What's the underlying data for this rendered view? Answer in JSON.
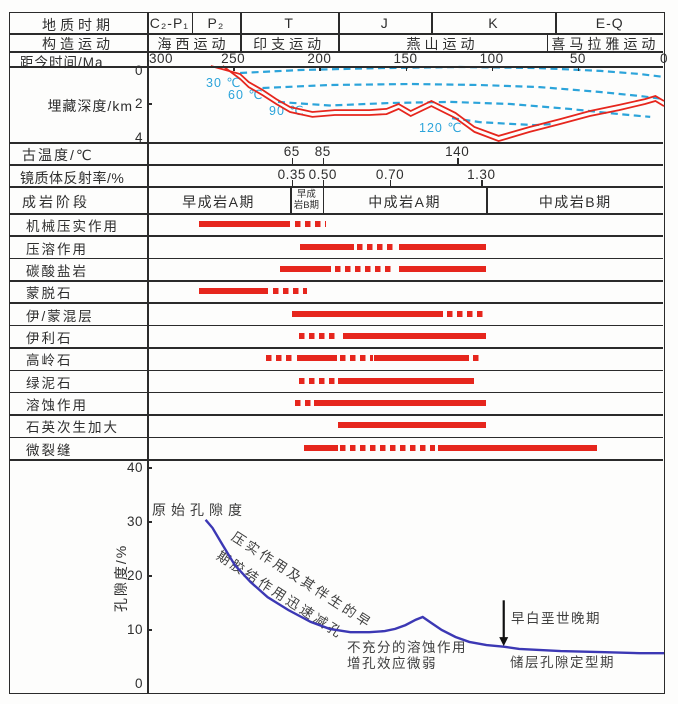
{
  "figure": {
    "bg": "#fdfdfc",
    "line_color": "#2b2b2b",
    "red": "#e6261d",
    "cyan": "#2ca4da",
    "blue": "#3c38b4",
    "text": "#2e2e2e"
  },
  "left_labels": {
    "geologic_period": "地质时期",
    "tectonic_movement": "构造运动",
    "time_ma": "距今时间/Ma",
    "burial_depth": "埋藏深度/km",
    "paleo_temp": "古温度/℃",
    "vitrinite": "镜质体反射率/%",
    "diagenetic_stage": "成岩阶段",
    "porosity_axis": "孔隙度/%"
  },
  "annotations": {
    "original_porosity": "原始孔隙度",
    "compaction_note_line1": "压实作用及其伴生的早",
    "compaction_note_line2": "期胶结作用迅速减孔",
    "dissolution_note": "不充分的溶蚀作用\n增孔效应微弱",
    "early_cretaceous_late": "早白垩世晚期",
    "porosity_finalized": "储层孔隙定型期"
  },
  "chart_data": {
    "type": "composite (geologic time table + burial-history line chart + diagenesis event bars + porosity-evolution line chart)",
    "time_axis": {
      "label": "距今时间/Ma",
      "min": 0,
      "max": 300,
      "ticks": [
        300,
        250,
        200,
        150,
        100,
        50,
        0
      ]
    },
    "periods": [
      {
        "label": "C₂-P₁",
        "from_ma": 300,
        "to_ma": 274
      },
      {
        "label": "P₂",
        "from_ma": 274,
        "to_ma": 246
      },
      {
        "label": "T",
        "from_ma": 246,
        "to_ma": 189
      },
      {
        "label": "J",
        "from_ma": 189,
        "to_ma": 135
      },
      {
        "label": "K",
        "from_ma": 135,
        "to_ma": 63
      },
      {
        "label": "E-Q",
        "from_ma": 63,
        "to_ma": 0
      }
    ],
    "tectonic": [
      {
        "label": "海西运动",
        "from_ma": 300,
        "to_ma": 246
      },
      {
        "label": "印支运动",
        "from_ma": 246,
        "to_ma": 189
      },
      {
        "label": "燕山运动",
        "from_ma": 189,
        "to_ma": 68
      },
      {
        "label": "喜马拉雅运动",
        "from_ma": 68,
        "to_ma": 0
      }
    ],
    "burial": {
      "ylabel": "埋藏深度/km",
      "depth_ticks": [
        0,
        2,
        4
      ],
      "top_line_ma_km": [
        [
          263,
          0
        ],
        [
          246,
          0.42
        ],
        [
          241,
          0.84
        ],
        [
          233,
          1.26
        ],
        [
          225,
          1.74
        ],
        [
          217,
          2.16
        ],
        [
          204,
          2.42
        ],
        [
          191,
          2.32
        ],
        [
          171,
          2.32
        ],
        [
          161,
          2.26
        ],
        [
          154,
          2.0
        ],
        [
          147,
          2.37
        ],
        [
          135,
          1.84
        ],
        [
          121,
          2.47
        ],
        [
          110,
          3.21
        ],
        [
          96,
          3.68
        ],
        [
          78,
          3.21
        ],
        [
          60,
          2.79
        ],
        [
          43,
          2.37
        ],
        [
          26,
          2.05
        ],
        [
          11,
          1.74
        ],
        [
          5,
          1.58
        ],
        [
          0,
          1.84
        ]
      ],
      "bottom_line_ma_km": [
        [
          256,
          0
        ],
        [
          246,
          0.68
        ],
        [
          241,
          1.11
        ],
        [
          233,
          1.53
        ],
        [
          225,
          2.0
        ],
        [
          217,
          2.42
        ],
        [
          204,
          2.68
        ],
        [
          191,
          2.58
        ],
        [
          171,
          2.58
        ],
        [
          161,
          2.53
        ],
        [
          154,
          2.26
        ],
        [
          147,
          2.63
        ],
        [
          135,
          2.11
        ],
        [
          121,
          2.74
        ],
        [
          110,
          3.47
        ],
        [
          96,
          3.95
        ],
        [
          78,
          3.47
        ],
        [
          60,
          3.05
        ],
        [
          43,
          2.63
        ],
        [
          26,
          2.32
        ],
        [
          11,
          2.0
        ],
        [
          5,
          1.84
        ],
        [
          0,
          2.11
        ]
      ],
      "isotherms": [
        {
          "label": "30 ℃",
          "label_ma": 266,
          "label_km": 0.5,
          "points": [
            [
              246,
              0.37
            ],
            [
              211,
              0.21
            ],
            [
              165,
              0.11
            ],
            [
              118,
              0.05
            ],
            [
              72,
              0.11
            ],
            [
              37,
              0.26
            ],
            [
              14,
              0.42
            ],
            [
              0,
              0.58
            ]
          ]
        },
        {
          "label": "60 ℃",
          "label_ma": 253,
          "label_km": 1.16,
          "points": [
            [
              233,
              1.16
            ],
            [
              194,
              1.0
            ],
            [
              147,
              0.95
            ],
            [
              107,
              1.0
            ],
            [
              72,
              1.11
            ],
            [
              37,
              1.37
            ],
            [
              14,
              1.58
            ],
            [
              0,
              1.74
            ]
          ]
        },
        {
          "label": "90 ℃",
          "label_ma": 229,
          "label_km": 2.0,
          "points": [
            [
              224,
              1.89
            ],
            [
              194,
              2.08
            ],
            [
              159,
              1.95
            ],
            [
              124,
              1.89
            ],
            [
              89,
              2.0
            ],
            [
              55,
              2.26
            ],
            [
              26,
              2.53
            ],
            [
              8,
              2.68
            ]
          ]
        },
        {
          "label": "120 ℃",
          "label_ma": 142,
          "label_km": 2.95,
          "points": [
            [
              123,
              2.74
            ],
            [
              107,
              2.95
            ],
            [
              89,
              3.05
            ],
            [
              75,
              3.11
            ],
            [
              64,
              3.05
            ]
          ]
        }
      ]
    },
    "paleo_temp_marks": [
      {
        "value": "65",
        "ma": 216
      },
      {
        "value": "85",
        "ma": 198
      },
      {
        "value": "140",
        "ma": 120
      }
    ],
    "vitrinite_marks": [
      {
        "value": "0.35",
        "ma": 216
      },
      {
        "value": "0.50",
        "ma": 198
      },
      {
        "value": "0.70",
        "ma": 159
      },
      {
        "value": "1.30",
        "ma": 106
      }
    ],
    "stages": [
      {
        "label": "早成岩A期",
        "from_ma": 300,
        "to_ma": 217,
        "small": false
      },
      {
        "label": "早成\n岩B期",
        "from_ma": 217,
        "to_ma": 198,
        "small": true
      },
      {
        "label": "中成岩A期",
        "from_ma": 198,
        "to_ma": 103,
        "small": false
      },
      {
        "label": "中成岩B期",
        "from_ma": 103,
        "to_ma": 0,
        "small": false
      }
    ],
    "processes": [
      {
        "label": "机械压实作用",
        "segments": [
          {
            "style": "solid",
            "from_ma": 270,
            "to_ma": 217
          },
          {
            "style": "dashed",
            "from_ma": 214,
            "to_ma": 196
          }
        ]
      },
      {
        "label": "压溶作用",
        "segments": [
          {
            "style": "solid",
            "from_ma": 211,
            "to_ma": 180
          },
          {
            "style": "dashed",
            "from_ma": 178,
            "to_ma": 156
          },
          {
            "style": "solid",
            "from_ma": 154,
            "to_ma": 103
          }
        ]
      },
      {
        "label": "碳酸盐岩",
        "segments": [
          {
            "style": "solid",
            "from_ma": 223,
            "to_ma": 193
          },
          {
            "style": "dashed",
            "from_ma": 191,
            "to_ma": 157
          },
          {
            "style": "solid",
            "from_ma": 154,
            "to_ma": 103
          }
        ]
      },
      {
        "label": "蒙脱石",
        "segments": [
          {
            "style": "solid",
            "from_ma": 270,
            "to_ma": 230
          },
          {
            "style": "dashed",
            "from_ma": 227,
            "to_ma": 207
          }
        ]
      },
      {
        "label": "伊/蒙混层",
        "segments": [
          {
            "style": "solid",
            "from_ma": 216,
            "to_ma": 128
          },
          {
            "style": "dashed",
            "from_ma": 126,
            "to_ma": 104
          }
        ]
      },
      {
        "label": "伊利石",
        "segments": [
          {
            "style": "dashed",
            "from_ma": 212,
            "to_ma": 189
          },
          {
            "style": "solid",
            "from_ma": 186,
            "to_ma": 103
          }
        ]
      },
      {
        "label": "高岭石",
        "segments": [
          {
            "style": "dashed",
            "from_ma": 231,
            "to_ma": 216
          },
          {
            "style": "solid",
            "from_ma": 213,
            "to_ma": 190
          },
          {
            "style": "dashed",
            "from_ma": 188,
            "to_ma": 169
          },
          {
            "style": "solid",
            "from_ma": 168,
            "to_ma": 113
          },
          {
            "style": "dashed",
            "from_ma": 111,
            "to_ma": 106
          }
        ]
      },
      {
        "label": "绿泥石",
        "segments": [
          {
            "style": "dashed",
            "from_ma": 212,
            "to_ma": 190
          },
          {
            "style": "solid",
            "from_ma": 189,
            "to_ma": 110
          }
        ]
      },
      {
        "label": "溶蚀作用",
        "segments": [
          {
            "style": "dashed",
            "from_ma": 214,
            "to_ma": 204
          },
          {
            "style": "solid",
            "from_ma": 203,
            "to_ma": 103
          }
        ]
      },
      {
        "label": "石英次生加大",
        "segments": [
          {
            "style": "solid",
            "from_ma": 189,
            "to_ma": 103
          }
        ]
      },
      {
        "label": "微裂缝",
        "segments": [
          {
            "style": "solid",
            "from_ma": 209,
            "to_ma": 189
          },
          {
            "style": "dashed",
            "from_ma": 188,
            "to_ma": 133
          },
          {
            "style": "solid",
            "from_ma": 131,
            "to_ma": 39
          }
        ]
      }
    ],
    "porosity": {
      "ylabel": "孔隙度/%",
      "ticks": [
        40,
        30,
        20,
        10,
        0
      ],
      "ylim": [
        0,
        40
      ],
      "curve_ma_pct": [
        [
          266,
          30.4
        ],
        [
          262,
          28.9
        ],
        [
          256,
          25.7
        ],
        [
          249,
          22.0
        ],
        [
          240,
          18.9
        ],
        [
          230,
          16.1
        ],
        [
          218,
          13.7
        ],
        [
          205,
          11.5
        ],
        [
          194,
          10.2
        ],
        [
          182,
          9.6
        ],
        [
          171,
          9.6
        ],
        [
          162,
          9.8
        ],
        [
          156,
          10.2
        ],
        [
          150,
          10.9
        ],
        [
          144,
          11.9
        ],
        [
          140,
          12.4
        ],
        [
          135,
          11.3
        ],
        [
          129,
          10.0
        ],
        [
          121,
          8.7
        ],
        [
          113,
          7.8
        ],
        [
          103,
          7.2
        ],
        [
          93,
          6.9
        ],
        [
          84,
          6.5
        ],
        [
          60,
          6.1
        ],
        [
          37,
          5.9
        ],
        [
          14,
          5.7
        ],
        [
          0,
          5.7
        ]
      ],
      "event_arrow": {
        "ma": 93,
        "from_pct": 15.5,
        "to_pct": 7.2
      }
    }
  }
}
